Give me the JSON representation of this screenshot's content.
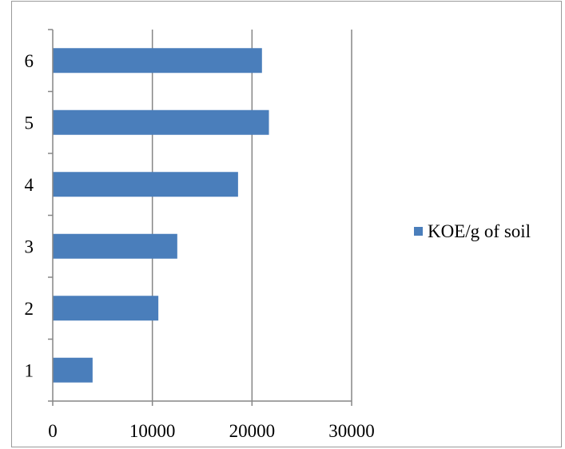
{
  "chart_data": {
    "type": "bar",
    "orientation": "horizontal",
    "categories": [
      "1",
      "2",
      "3",
      "4",
      "5",
      "6"
    ],
    "series": [
      {
        "name": "KOE/g of soil",
        "values": [
          4000,
          10600,
          12500,
          18600,
          21700,
          21000
        ]
      }
    ],
    "title": "",
    "xlabel": "",
    "ylabel": "",
    "xlim": [
      0,
      30000
    ],
    "x_ticks": [
      "0",
      "10000",
      "20000",
      "30000"
    ],
    "grid": "vertical",
    "legend": "right",
    "bar_color": "#4a7ebb",
    "grid_color": "#868686"
  }
}
